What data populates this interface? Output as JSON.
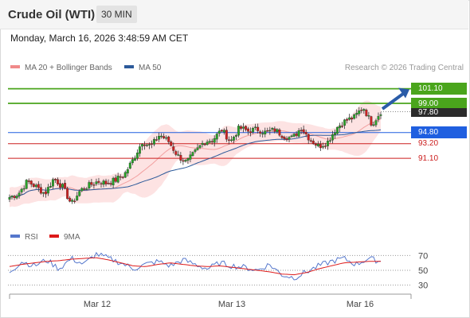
{
  "header": {
    "title": "Crude Oil (WTI)",
    "interval": "30 MIN"
  },
  "datetime": "Monday, March 16, 2026 3:48:59 AM CET",
  "legend": {
    "bollinger": {
      "label": "MA 20 + Bollinger Bands",
      "color": "#f08a8a"
    },
    "ma50": {
      "label": "MA 50",
      "color": "#2c5a9a"
    },
    "rsi": {
      "label": "RSI",
      "color": "#5577cc"
    },
    "rsi_ma": {
      "label": "9MA",
      "color": "#dd1a1a"
    }
  },
  "credit": "Research © 2026 Trading Central",
  "levels": [
    {
      "label": "101.10",
      "value": 101.1,
      "kind": "resistance",
      "color": "#4aa51c"
    },
    {
      "label": "99.00",
      "value": 99.0,
      "kind": "resistance",
      "color": "#4aa51c"
    },
    {
      "label": "97.80",
      "value": 97.8,
      "kind": "last",
      "color": "#2b2b2b"
    },
    {
      "label": "94.80",
      "value": 94.8,
      "kind": "pivot",
      "color": "#1f5fe0"
    },
    {
      "label": "93.20",
      "value": 93.2,
      "kind": "support",
      "color": "#cc1e1e"
    },
    {
      "label": "91.10",
      "value": 91.1,
      "kind": "support",
      "color": "#cc1e1e"
    }
  ],
  "rsi_ticks": [
    "70",
    "50",
    "30"
  ],
  "x_labels": [
    "Mar 12",
    "Mar 13",
    "Mar 16"
  ],
  "chart_data": {
    "type": "candlestick",
    "price_ylim": [
      83,
      103
    ],
    "rsi_ylim": [
      20,
      80
    ],
    "x_axis_labels": [
      "Mar 12",
      "Mar 13",
      "Mar 16"
    ],
    "annotation": "Upward arrow pointing to 101.10",
    "price_waypoints": [
      85.5,
      86.0,
      87.8,
      87.0,
      86.0,
      88.2,
      87.0,
      84.5,
      86.5,
      87.2,
      87.8,
      87.5,
      88.0,
      88.8,
      91.0,
      93.5,
      92.8,
      94.5,
      93.5,
      91.5,
      90.5,
      92.0,
      93.5,
      93.8,
      95.2,
      93.5,
      95.5,
      95.0,
      95.3,
      94.8,
      95.2,
      94.3,
      94.0,
      95.5,
      93.8,
      92.8,
      93.5,
      95.5,
      96.5,
      97.0,
      98.5,
      96.0,
      97.8
    ],
    "rsi_waypoints": [
      48,
      62,
      56,
      64,
      52,
      66,
      58,
      72,
      66,
      60,
      52,
      58,
      62,
      56,
      64,
      58,
      52,
      60,
      56,
      54,
      50,
      58,
      44,
      40,
      48,
      56,
      62,
      66,
      58,
      66,
      62
    ],
    "rsi_ma_waypoints": [
      55,
      58,
      60,
      62,
      63,
      65,
      66,
      67,
      64,
      60,
      56,
      55,
      58,
      60,
      58,
      56,
      55,
      56,
      54,
      52,
      50,
      48,
      45,
      44,
      47,
      52,
      56,
      60,
      61,
      62,
      62
    ]
  }
}
